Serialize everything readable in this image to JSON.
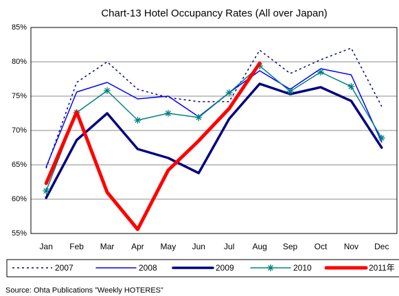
{
  "chart_data": {
    "type": "line",
    "title": "Chart-13 Hotel Occupancy Rates (All over Japan)",
    "source": "Source: Ohta Publications ”Weekly HOTERES”",
    "categories": [
      "Jan",
      "Feb",
      "Mar",
      "Apr",
      "May",
      "Jun",
      "Jul",
      "Aug",
      "Sep",
      "Oct",
      "Nov",
      "Dec"
    ],
    "ylim": [
      55,
      85
    ],
    "yticks": [
      {
        "value": 55,
        "label": "55%"
      },
      {
        "value": 60,
        "label": "60%"
      },
      {
        "value": 65,
        "label": "65%"
      },
      {
        "value": 70,
        "label": "70%"
      },
      {
        "value": 75,
        "label": "75%"
      },
      {
        "value": 80,
        "label": "80%"
      },
      {
        "value": 85,
        "label": "85%"
      }
    ],
    "grid": true,
    "legend": "bottom",
    "series": [
      {
        "name": "2007",
        "color": "#000080",
        "dash": "dotted",
        "values": [
          64.5,
          77,
          80,
          76,
          74.8,
          74.2,
          74.2,
          81.7,
          78.3,
          80.3,
          82,
          73.5
        ]
      },
      {
        "name": "2008",
        "color": "#0000ff",
        "values": [
          64.7,
          75.6,
          77,
          74.6,
          75,
          72,
          75.5,
          78.7,
          76,
          79,
          78.1,
          68.3
        ]
      },
      {
        "name": "2009",
        "color": "#000080",
        "values": [
          60.2,
          68.6,
          72.5,
          67.3,
          66,
          63.8,
          71.7,
          76.8,
          75.3,
          76.3,
          74.3,
          67.5
        ]
      },
      {
        "name": "2010",
        "color": "#008080",
        "marker": "star",
        "values": [
          61.2,
          72.6,
          75.8,
          71.5,
          72.5,
          71.9,
          75.5,
          79.4,
          75.7,
          78.5,
          76.4,
          68.9
        ]
      },
      {
        "name": "2011年",
        "color": "#ff0000",
        "values": [
          62.3,
          72.7,
          61,
          55.6,
          64.2,
          68.5,
          73.2,
          79.8,
          null,
          null,
          null,
          null
        ]
      }
    ]
  }
}
